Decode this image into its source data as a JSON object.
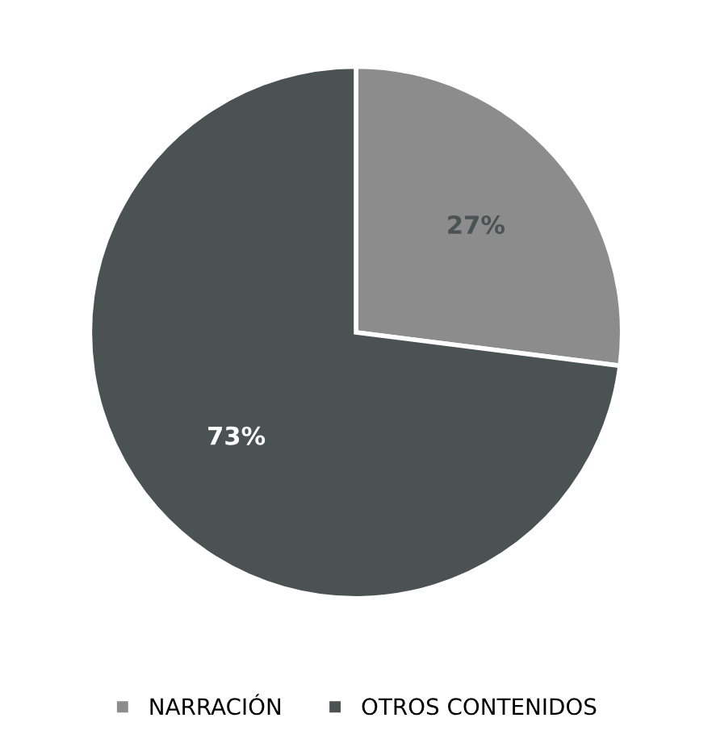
{
  "chart_data": {
    "type": "pie",
    "categories": [
      "NARRACIÓN",
      "OTROS CONTENIDOS"
    ],
    "values": [
      27,
      73
    ],
    "colors": [
      "#8c8c8c",
      "#4b5352"
    ],
    "value_labels": [
      "27%",
      "73%"
    ],
    "legend": "bottom"
  }
}
